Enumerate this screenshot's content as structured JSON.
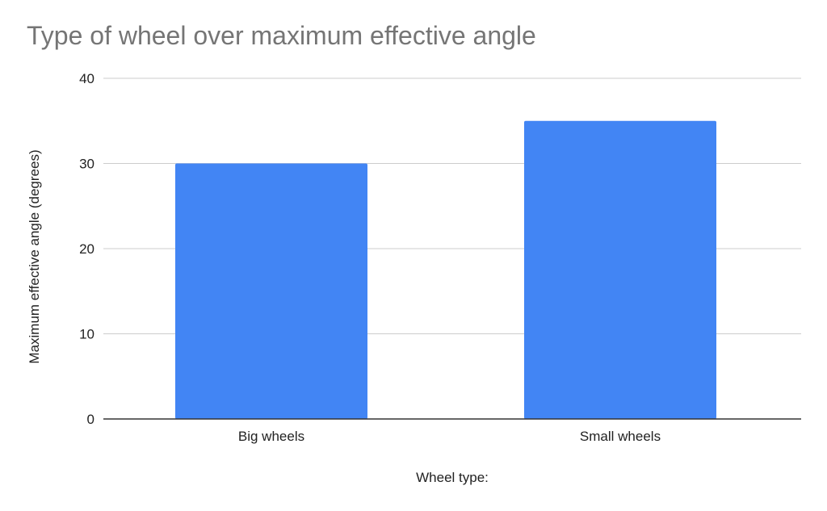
{
  "chart_data": {
    "type": "bar",
    "title": "Type of wheel over maximum effective angle",
    "xlabel": "Wheel type:",
    "ylabel": "Maximum effective angle (degrees)",
    "categories": [
      "Big wheels",
      "Small wheels"
    ],
    "series": [
      {
        "values": [
          30,
          35
        ]
      }
    ],
    "ylim": [
      0,
      40
    ],
    "yticks": [
      "0",
      "10",
      "20",
      "30",
      "40"
    ],
    "grid": true,
    "legend": "none",
    "colors": {
      "bar": "#4285f4",
      "title": "#757575",
      "gridline": "#cccccc",
      "axis": "#333333",
      "text": "#222222"
    }
  }
}
